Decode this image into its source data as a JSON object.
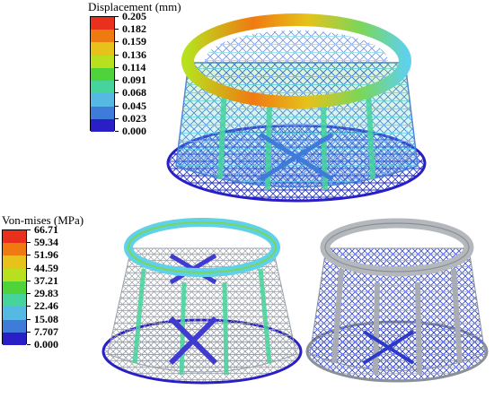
{
  "displacement_legend": {
    "title": "Displacement (mm)",
    "ticks": [
      "0.205",
      "0.182",
      "0.159",
      "0.136",
      "0.114",
      "0.091",
      "0.068",
      "0.045",
      "0.023",
      "0.000"
    ]
  },
  "stress_legend": {
    "title": "Von-mises (MPa)",
    "ticks": [
      "66.71",
      "59.34",
      "51.96",
      "44.59",
      "37.21",
      "29.83",
      "22.46",
      "15.08",
      "7.707",
      "0.000"
    ]
  },
  "colormap": [
    "#e8301c",
    "#f07a12",
    "#e6c21a",
    "#b8e01e",
    "#4fd33a",
    "#46d49c",
    "#56b9e3",
    "#3f7bd8",
    "#2a1fc6"
  ],
  "colors": {
    "mesh_blue": "#2d39c8",
    "mesh_grey": "#9aa0a8",
    "mesh_light": "#c9ccd2",
    "cyan": "#5fd1e8",
    "green": "#7ad65a"
  }
}
